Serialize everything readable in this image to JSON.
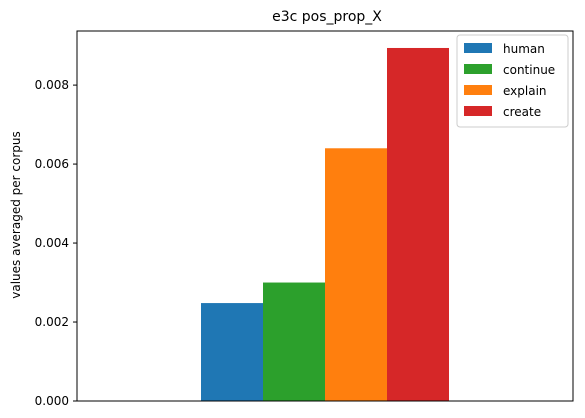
{
  "chart_data": {
    "type": "bar",
    "title": "e3c pos_prop_X",
    "xlabel": "",
    "ylabel": "values averaged per corpus",
    "ylim": [
      0,
      0.00937
    ],
    "yticks": [
      "0.000",
      "0.002",
      "0.004",
      "0.006",
      "0.008"
    ],
    "ytick_values": [
      0,
      0.002,
      0.004,
      0.006,
      0.008
    ],
    "grid": false,
    "legend_position": "top-right",
    "series": [
      {
        "name": "human",
        "value": 0.00248,
        "color": "#1f77b4"
      },
      {
        "name": "continue",
        "value": 0.003,
        "color": "#2ca02c"
      },
      {
        "name": "explain",
        "value": 0.0064,
        "color": "#ff7f0e"
      },
      {
        "name": "create",
        "value": 0.00894,
        "color": "#d62728"
      }
    ]
  }
}
